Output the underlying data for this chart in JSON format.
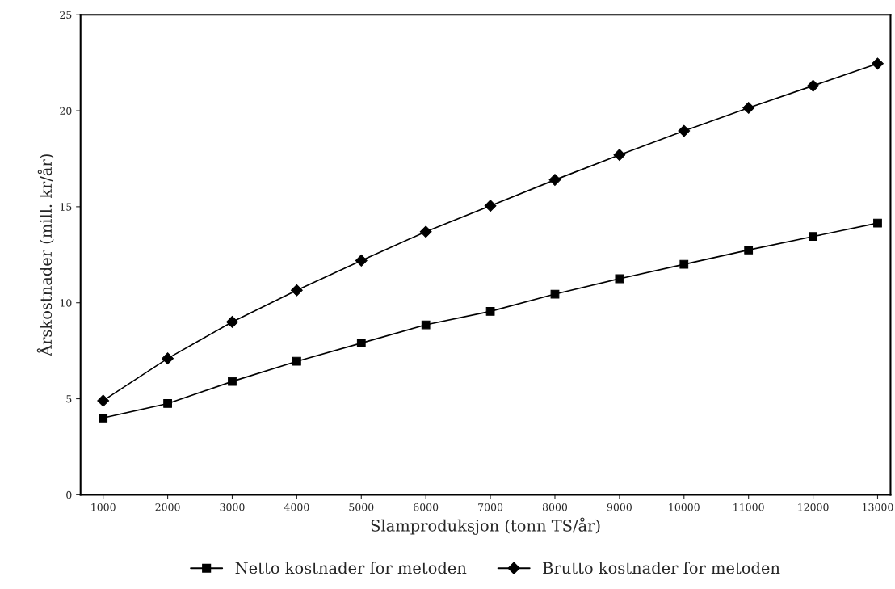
{
  "chart_data": {
    "type": "line",
    "xlabel": "Slamproduksjon (tonn TS/år)",
    "ylabel": "Årskostnader (mill. kr/år)",
    "x": [
      1000,
      2000,
      3000,
      4000,
      5000,
      6000,
      7000,
      8000,
      9000,
      10000,
      11000,
      12000,
      13000
    ],
    "xlim": [
      650,
      13200
    ],
    "xticks": [
      1000,
      2000,
      3000,
      4000,
      5000,
      6000,
      7000,
      8000,
      9000,
      10000,
      11000,
      12000,
      13000
    ],
    "ylim": [
      0,
      25
    ],
    "yticks": [
      0,
      5,
      10,
      15,
      20,
      25
    ],
    "grid": false,
    "legend": "bottom",
    "series": [
      {
        "name": "Netto kostnader for metoden",
        "color": "#000000",
        "marker": "square",
        "values": [
          4.0,
          4.75,
          5.9,
          6.95,
          7.9,
          8.85,
          9.55,
          10.45,
          11.25,
          12.0,
          12.75,
          13.45,
          14.15
        ]
      },
      {
        "name": "Brutto kostnader for metoden",
        "color": "#000000",
        "marker": "diamond",
        "values": [
          4.9,
          7.1,
          9.0,
          10.65,
          12.2,
          13.7,
          15.05,
          16.4,
          17.7,
          18.95,
          20.15,
          21.3,
          22.45
        ]
      }
    ]
  }
}
